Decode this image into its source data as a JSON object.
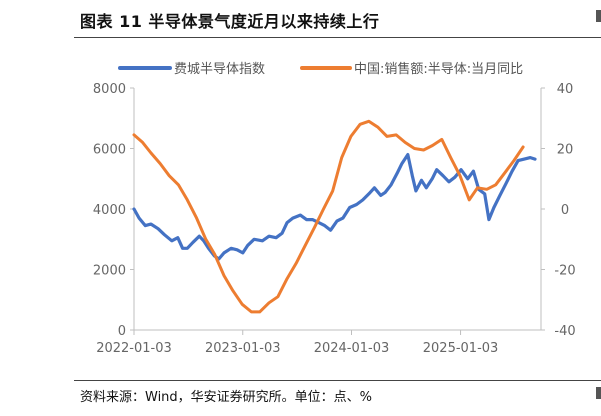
{
  "figure": {
    "title": "图表 11  半导体景气度近月以来持续上行",
    "source": "资料来源：Wind，华安证券研究所。单位：点、%"
  },
  "chart_data": {
    "type": "line",
    "x_type": "date",
    "xticks": [
      "2022-01-03",
      "2023-01-03",
      "2024-01-03",
      "2025-01-03"
    ],
    "xlim": [
      "2022-01-03",
      "2025-09-30"
    ],
    "y_left": {
      "ylim": [
        0,
        8000
      ],
      "ticks": [
        "0",
        "2000",
        "4000",
        "6000",
        "8000"
      ]
    },
    "y_right": {
      "ylim": [
        -40,
        40
      ],
      "ticks": [
        "-40",
        "-20",
        "0",
        "20",
        "40"
      ]
    },
    "grid": false,
    "legend_position": "top",
    "series": [
      {
        "name": "费城半导体指数",
        "axis": "left",
        "color": "#4472c4",
        "points": [
          [
            "2022-01-03",
            4000
          ],
          [
            "2022-01-20",
            3700
          ],
          [
            "2022-02-10",
            3450
          ],
          [
            "2022-03-01",
            3500
          ],
          [
            "2022-03-25",
            3350
          ],
          [
            "2022-04-15",
            3150
          ],
          [
            "2022-05-10",
            2950
          ],
          [
            "2022-05-30",
            3050
          ],
          [
            "2022-06-15",
            2700
          ],
          [
            "2022-07-01",
            2700
          ],
          [
            "2022-07-20",
            2900
          ],
          [
            "2022-08-10",
            3100
          ],
          [
            "2022-08-25",
            2950
          ],
          [
            "2022-09-10",
            2700
          ],
          [
            "2022-09-30",
            2450
          ],
          [
            "2022-10-15",
            2350
          ],
          [
            "2022-11-01",
            2550
          ],
          [
            "2022-11-25",
            2700
          ],
          [
            "2022-12-15",
            2650
          ],
          [
            "2023-01-03",
            2550
          ],
          [
            "2023-01-20",
            2800
          ],
          [
            "2023-02-10",
            3000
          ],
          [
            "2023-03-10",
            2950
          ],
          [
            "2023-04-01",
            3100
          ],
          [
            "2023-04-25",
            3050
          ],
          [
            "2023-05-15",
            3200
          ],
          [
            "2023-06-01",
            3550
          ],
          [
            "2023-06-20",
            3700
          ],
          [
            "2023-07-15",
            3800
          ],
          [
            "2023-08-05",
            3650
          ],
          [
            "2023-08-25",
            3650
          ],
          [
            "2023-09-15",
            3550
          ],
          [
            "2023-10-05",
            3450
          ],
          [
            "2023-10-25",
            3300
          ],
          [
            "2023-11-15",
            3600
          ],
          [
            "2023-12-05",
            3700
          ],
          [
            "2023-12-28",
            4050
          ],
          [
            "2024-01-20",
            4150
          ],
          [
            "2024-02-10",
            4300
          ],
          [
            "2024-03-01",
            4500
          ],
          [
            "2024-03-20",
            4700
          ],
          [
            "2024-04-10",
            4450
          ],
          [
            "2024-04-25",
            4550
          ],
          [
            "2024-05-15",
            4800
          ],
          [
            "2024-06-05",
            5200
          ],
          [
            "2024-06-20",
            5500
          ],
          [
            "2024-07-10",
            5800
          ],
          [
            "2024-07-25",
            5100
          ],
          [
            "2024-08-06",
            4600
          ],
          [
            "2024-08-25",
            4950
          ],
          [
            "2024-09-10",
            4700
          ],
          [
            "2024-09-30",
            5000
          ],
          [
            "2024-10-15",
            5300
          ],
          [
            "2024-11-05",
            5100
          ],
          [
            "2024-11-25",
            4900
          ],
          [
            "2024-12-15",
            5050
          ],
          [
            "2025-01-05",
            5300
          ],
          [
            "2025-01-27",
            5000
          ],
          [
            "2025-02-15",
            5250
          ],
          [
            "2025-03-05",
            4650
          ],
          [
            "2025-03-25",
            4500
          ],
          [
            "2025-04-08",
            3650
          ],
          [
            "2025-04-25",
            4050
          ],
          [
            "2025-05-15",
            4450
          ],
          [
            "2025-06-05",
            4850
          ],
          [
            "2025-06-25",
            5250
          ],
          [
            "2025-07-15",
            5600
          ],
          [
            "2025-08-05",
            5650
          ],
          [
            "2025-08-25",
            5700
          ],
          [
            "2025-09-10",
            5650
          ]
        ]
      },
      {
        "name": "中国:销售额:半导体:当月同比",
        "axis": "right",
        "color": "#ed7d31",
        "points": [
          [
            "2022-01-03",
            24.5
          ],
          [
            "2022-02-01",
            22
          ],
          [
            "2022-03-01",
            18.5
          ],
          [
            "2022-04-01",
            15
          ],
          [
            "2022-05-01",
            11
          ],
          [
            "2022-06-01",
            8
          ],
          [
            "2022-07-01",
            3
          ],
          [
            "2022-08-01",
            -3
          ],
          [
            "2022-09-01",
            -10
          ],
          [
            "2022-10-01",
            -15
          ],
          [
            "2022-11-01",
            -22
          ],
          [
            "2022-12-01",
            -27
          ],
          [
            "2023-01-01",
            -31.5
          ],
          [
            "2023-02-01",
            -34
          ],
          [
            "2023-03-01",
            -34
          ],
          [
            "2023-04-01",
            -31
          ],
          [
            "2023-05-01",
            -29
          ],
          [
            "2023-06-01",
            -23
          ],
          [
            "2023-07-01",
            -18
          ],
          [
            "2023-08-01",
            -12
          ],
          [
            "2023-09-01",
            -6
          ],
          [
            "2023-10-01",
            0
          ],
          [
            "2023-11-01",
            6
          ],
          [
            "2023-12-01",
            17
          ],
          [
            "2024-01-01",
            24
          ],
          [
            "2024-02-01",
            28
          ],
          [
            "2024-03-01",
            29
          ],
          [
            "2024-04-01",
            27
          ],
          [
            "2024-05-01",
            24
          ],
          [
            "2024-06-01",
            24.5
          ],
          [
            "2024-07-01",
            22
          ],
          [
            "2024-08-01",
            20
          ],
          [
            "2024-09-01",
            19.5
          ],
          [
            "2024-10-01",
            21
          ],
          [
            "2024-11-01",
            23
          ],
          [
            "2024-12-01",
            17
          ],
          [
            "2025-01-01",
            11
          ],
          [
            "2025-02-01",
            3
          ],
          [
            "2025-03-01",
            7
          ],
          [
            "2025-04-01",
            6.5
          ],
          [
            "2025-05-01",
            8
          ],
          [
            "2025-06-01",
            12
          ],
          [
            "2025-07-01",
            16
          ],
          [
            "2025-08-01",
            20.5
          ]
        ]
      }
    ]
  }
}
